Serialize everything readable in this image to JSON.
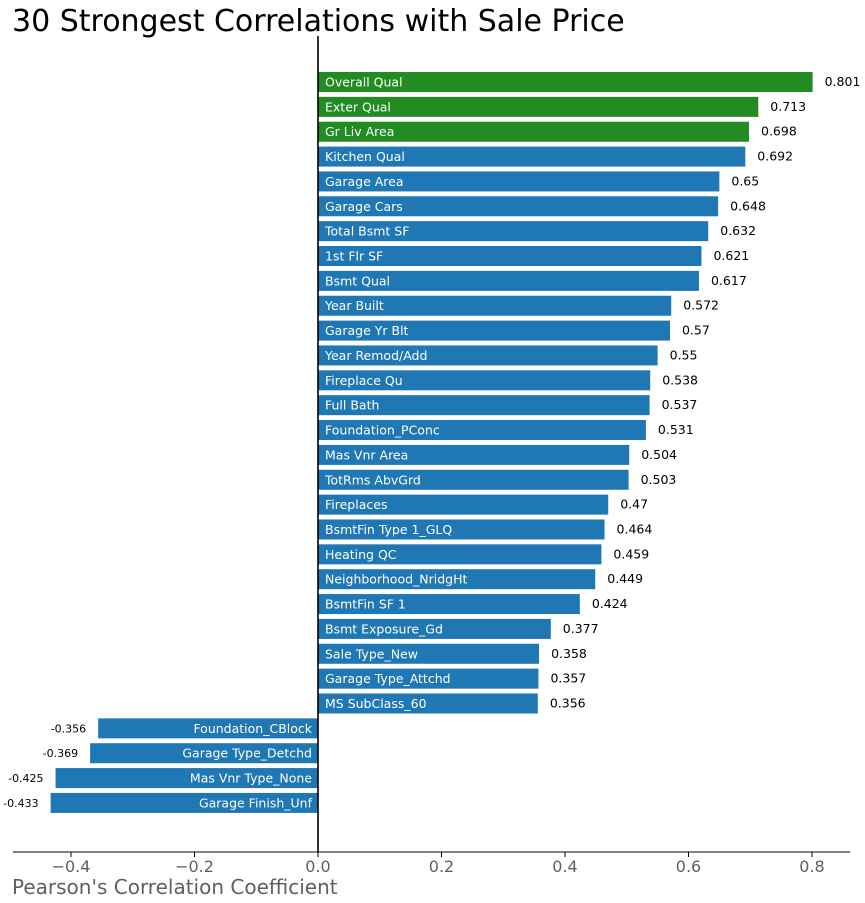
{
  "chart_data": {
    "type": "bar",
    "orientation": "horizontal",
    "title": "30 Strongest Correlations with Sale Price",
    "xlabel": "Pearson's Correlation Coefficient",
    "xlim": [
      -0.49,
      0.86
    ],
    "xticks": [
      -0.4,
      -0.2,
      0.0,
      0.2,
      0.4,
      0.6,
      0.8
    ],
    "xtick_labels": [
      "−0.4",
      "−0.2",
      "0.0",
      "0.2",
      "0.4",
      "0.6",
      "0.8"
    ],
    "colors": {
      "highlight": "#228b22",
      "default": "#1f77b4"
    },
    "bars": [
      {
        "label": "Overall Qual",
        "value": 0.801,
        "value_label": "0.801",
        "highlight": true
      },
      {
        "label": "Exter Qual",
        "value": 0.713,
        "value_label": "0.713",
        "highlight": true
      },
      {
        "label": "Gr Liv Area",
        "value": 0.698,
        "value_label": "0.698",
        "highlight": true
      },
      {
        "label": "Kitchen Qual",
        "value": 0.692,
        "value_label": "0.692"
      },
      {
        "label": "Garage Area",
        "value": 0.65,
        "value_label": "0.65"
      },
      {
        "label": "Garage Cars",
        "value": 0.648,
        "value_label": "0.648"
      },
      {
        "label": "Total Bsmt SF",
        "value": 0.632,
        "value_label": "0.632"
      },
      {
        "label": "1st Flr SF",
        "value": 0.621,
        "value_label": "0.621"
      },
      {
        "label": "Bsmt Qual",
        "value": 0.617,
        "value_label": "0.617"
      },
      {
        "label": "Year Built",
        "value": 0.572,
        "value_label": "0.572"
      },
      {
        "label": "Garage Yr Blt",
        "value": 0.57,
        "value_label": "0.57"
      },
      {
        "label": "Year Remod/Add",
        "value": 0.55,
        "value_label": "0.55"
      },
      {
        "label": "Fireplace Qu",
        "value": 0.538,
        "value_label": "0.538"
      },
      {
        "label": "Full Bath",
        "value": 0.537,
        "value_label": "0.537"
      },
      {
        "label": "Foundation_PConc",
        "value": 0.531,
        "value_label": "0.531"
      },
      {
        "label": "Mas Vnr Area",
        "value": 0.504,
        "value_label": "0.504"
      },
      {
        "label": "TotRms AbvGrd",
        "value": 0.503,
        "value_label": "0.503"
      },
      {
        "label": "Fireplaces",
        "value": 0.47,
        "value_label": "0.47"
      },
      {
        "label": "BsmtFin Type 1_GLQ",
        "value": 0.464,
        "value_label": "0.464"
      },
      {
        "label": "Heating QC",
        "value": 0.459,
        "value_label": "0.459"
      },
      {
        "label": "Neighborhood_NridgHt",
        "value": 0.449,
        "value_label": "0.449"
      },
      {
        "label": "BsmtFin SF 1",
        "value": 0.424,
        "value_label": "0.424"
      },
      {
        "label": "Bsmt Exposure_Gd",
        "value": 0.377,
        "value_label": "0.377"
      },
      {
        "label": "Sale Type_New",
        "value": 0.358,
        "value_label": "0.358"
      },
      {
        "label": "Garage Type_Attchd",
        "value": 0.357,
        "value_label": "0.357"
      },
      {
        "label": "MS SubClass_60",
        "value": 0.356,
        "value_label": "0.356"
      },
      {
        "label": "Foundation_CBlock",
        "value": -0.356,
        "value_label": "-0.356"
      },
      {
        "label": "Garage Type_Detchd",
        "value": -0.369,
        "value_label": "-0.369"
      },
      {
        "label": "Mas Vnr Type_None",
        "value": -0.425,
        "value_label": "-0.425"
      },
      {
        "label": "Garage Finish_Unf",
        "value": -0.433,
        "value_label": "-0.433"
      }
    ]
  }
}
